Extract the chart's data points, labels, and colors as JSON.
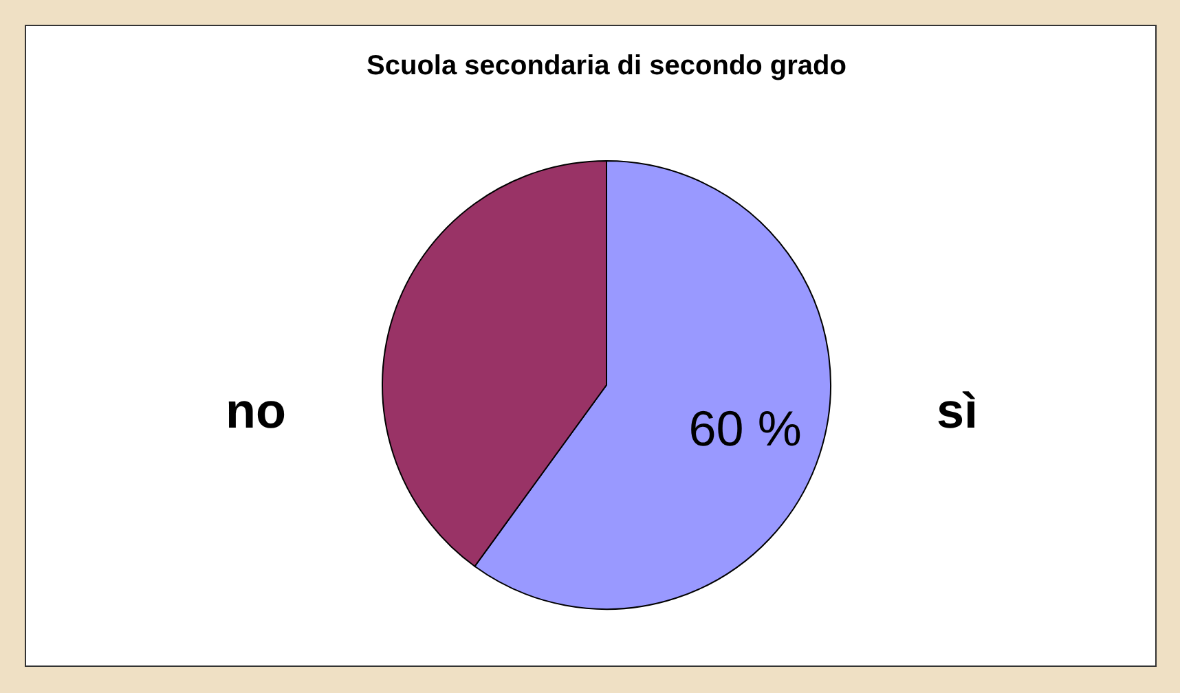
{
  "chart_data": {
    "type": "pie",
    "title": "Scuola secondaria di secondo grado",
    "categories": [
      "sì",
      "no"
    ],
    "values": [
      60,
      40
    ],
    "colors": [
      "#9999ff",
      "#993366"
    ],
    "value_labels": [
      "60 %",
      null
    ]
  }
}
